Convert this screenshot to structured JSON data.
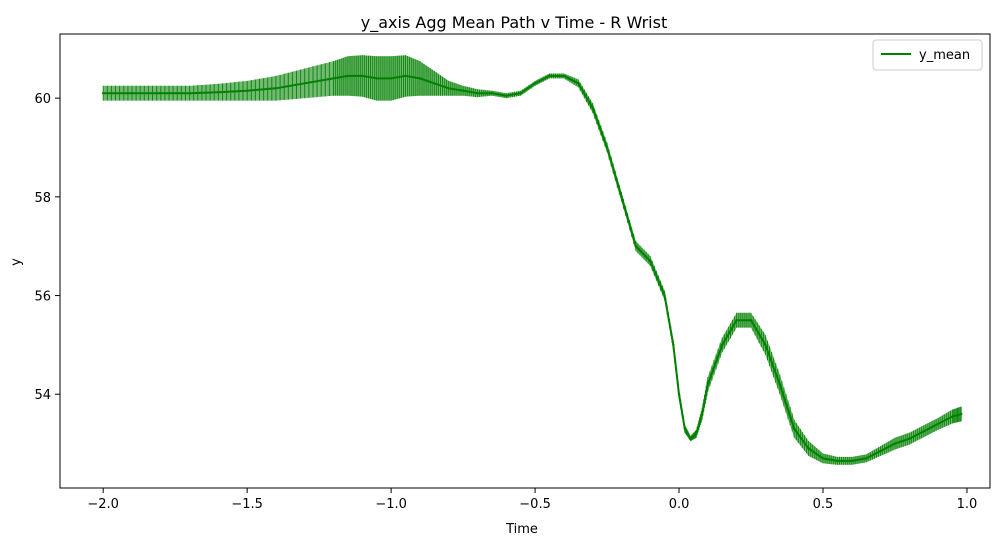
{
  "chart_data": {
    "type": "line",
    "title": "y_axis Agg Mean Path v Time - R Wrist",
    "xlabel": "Time",
    "ylabel": "y",
    "xlim": [
      -2.15,
      1.08
    ],
    "ylim": [
      52.1,
      61.3
    ],
    "x_ticks": [
      -2.0,
      -1.5,
      -1.0,
      -0.5,
      0.0,
      0.5,
      1.0
    ],
    "x_tick_labels": [
      "−2.0",
      "−1.5",
      "−1.0",
      "−0.5",
      "0.0",
      "0.5",
      "1.0"
    ],
    "y_ticks": [
      54,
      56,
      58,
      60
    ],
    "y_tick_labels": [
      "54",
      "56",
      "58",
      "60"
    ],
    "grid": false,
    "legend": {
      "position": "top-right",
      "entries": [
        "y_mean"
      ]
    },
    "line_color": "#008000",
    "band_color": "#008000",
    "series": [
      {
        "name": "y_mean",
        "x": [
          -2.0,
          -1.9,
          -1.8,
          -1.7,
          -1.6,
          -1.5,
          -1.4,
          -1.3,
          -1.2,
          -1.15,
          -1.1,
          -1.05,
          -1.0,
          -0.95,
          -0.9,
          -0.85,
          -0.8,
          -0.75,
          -0.7,
          -0.65,
          -0.6,
          -0.55,
          -0.5,
          -0.45,
          -0.4,
          -0.35,
          -0.3,
          -0.25,
          -0.2,
          -0.15,
          -0.1,
          -0.05,
          -0.02,
          0.0,
          0.02,
          0.04,
          0.06,
          0.08,
          0.1,
          0.15,
          0.2,
          0.25,
          0.3,
          0.35,
          0.4,
          0.45,
          0.5,
          0.55,
          0.6,
          0.65,
          0.7,
          0.75,
          0.8,
          0.85,
          0.9,
          0.95,
          0.98
        ],
        "y": [
          60.1,
          60.1,
          60.1,
          60.1,
          60.12,
          60.15,
          60.2,
          60.3,
          60.4,
          60.45,
          60.45,
          60.4,
          60.4,
          60.45,
          60.4,
          60.3,
          60.2,
          60.15,
          60.1,
          60.1,
          60.05,
          60.1,
          60.3,
          60.45,
          60.45,
          60.3,
          59.8,
          59.0,
          58.0,
          57.0,
          56.7,
          56.0,
          55.0,
          54.0,
          53.3,
          53.1,
          53.2,
          53.6,
          54.2,
          55.0,
          55.5,
          55.5,
          55.0,
          54.2,
          53.3,
          52.9,
          52.7,
          52.65,
          52.65,
          52.7,
          52.85,
          53.0,
          53.1,
          53.25,
          53.4,
          53.55,
          53.6
        ],
        "spread": [
          0.15,
          0.15,
          0.15,
          0.15,
          0.17,
          0.2,
          0.25,
          0.3,
          0.35,
          0.4,
          0.42,
          0.45,
          0.45,
          0.42,
          0.35,
          0.25,
          0.15,
          0.1,
          0.08,
          0.05,
          0.05,
          0.05,
          0.05,
          0.05,
          0.05,
          0.08,
          0.1,
          0.1,
          0.1,
          0.1,
          0.1,
          0.1,
          0.1,
          0.1,
          0.08,
          0.05,
          0.08,
          0.12,
          0.15,
          0.15,
          0.15,
          0.15,
          0.2,
          0.2,
          0.18,
          0.15,
          0.1,
          0.08,
          0.08,
          0.08,
          0.1,
          0.12,
          0.12,
          0.12,
          0.12,
          0.14,
          0.15
        ]
      }
    ]
  }
}
